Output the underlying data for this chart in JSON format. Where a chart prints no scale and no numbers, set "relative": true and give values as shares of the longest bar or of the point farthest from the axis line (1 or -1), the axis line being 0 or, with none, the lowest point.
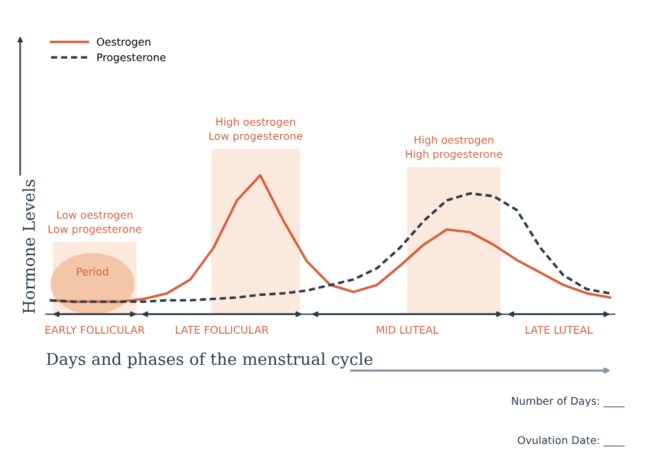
{
  "chart_data": {
    "type": "line",
    "relative": true,
    "xlabel": "Days and phases of the menstrual cycle",
    "ylabel": "Hormone Levels",
    "tick_labels": false,
    "grid": false,
    "legend": "top left",
    "marker": "none",
    "categories": [
      null,
      null,
      null,
      null,
      null,
      null,
      null,
      null,
      null,
      null,
      null,
      null,
      null,
      null,
      null,
      null,
      null,
      null,
      null,
      null,
      null,
      null,
      null,
      null,
      null
    ],
    "series": [
      {
        "name": "Oestrogen",
        "color": "#d9603b",
        "line_style": "solid",
        "values": [
          0.1,
          0.09,
          0.09,
          0.09,
          0.11,
          0.15,
          0.25,
          0.48,
          0.82,
          1.0,
          0.67,
          0.38,
          0.21,
          0.16,
          0.21,
          0.35,
          0.5,
          0.61,
          0.59,
          0.5,
          0.39,
          0.3,
          0.21,
          0.15,
          0.12
        ]
      },
      {
        "name": "Progesterone",
        "color": "#2b3a4a",
        "line_style": "dashed",
        "values": [
          0.1,
          0.09,
          0.09,
          0.09,
          0.09,
          0.1,
          0.1,
          0.11,
          0.12,
          0.14,
          0.15,
          0.17,
          0.21,
          0.25,
          0.33,
          0.48,
          0.67,
          0.82,
          0.87,
          0.85,
          0.75,
          0.48,
          0.28,
          0.18,
          0.15
        ]
      }
    ],
    "annotations": [
      "Period",
      "Low oestrogen\nLow progesterone",
      "High oestrogen\nLow progesterone",
      "High oestrogen\nHigh progesterone",
      "EARLY FOLLICULAR",
      "LATE FOLLICULAR",
      "MID LUTEAL",
      "LATE LUTEAL",
      "Number of Days: ____",
      "Ovulation Date: ____"
    ]
  }
}
